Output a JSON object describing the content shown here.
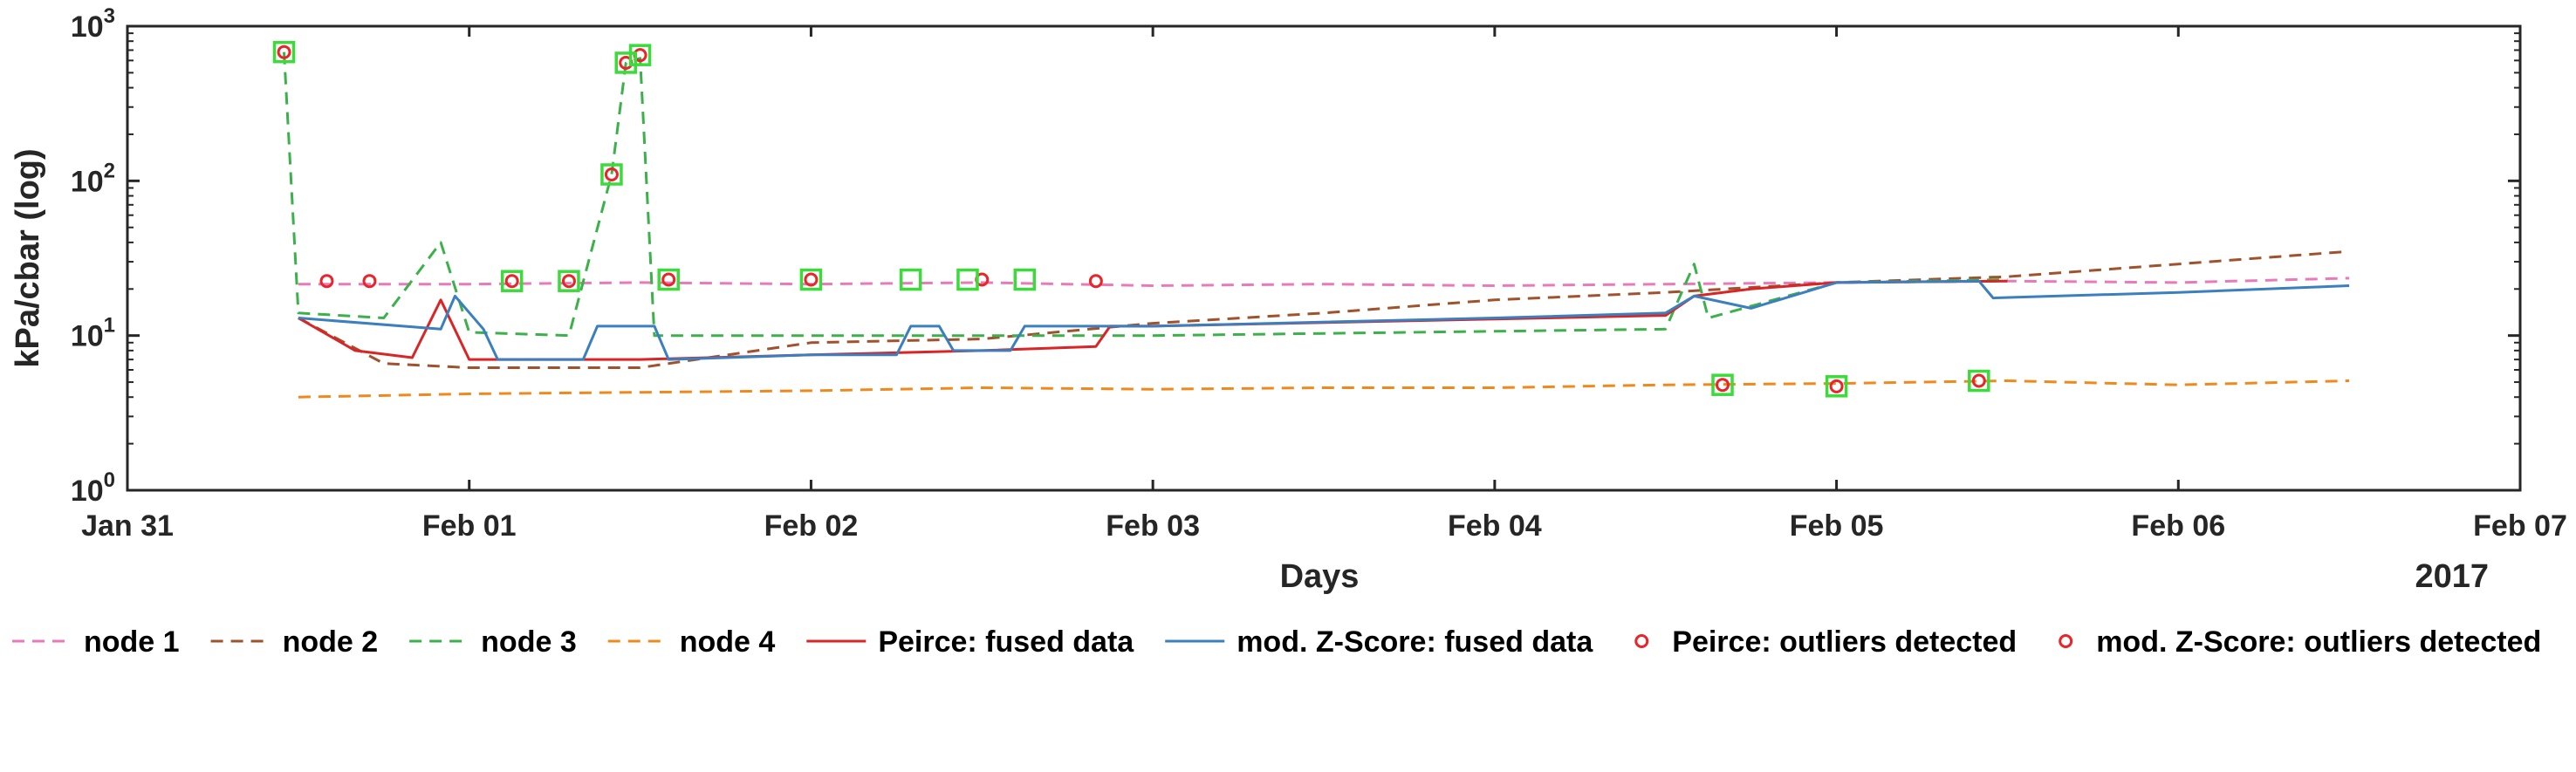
{
  "chart_data": {
    "type": "line",
    "ylabel": "kPa/cbar (log)",
    "xlabel": "Days",
    "year_label": "2017",
    "yscale": "log",
    "ylim": [
      1,
      1000
    ],
    "xlim": [
      "Jan 31",
      "Feb 07"
    ],
    "x_ticks": [
      "Jan 31",
      "Feb 01",
      "Feb 02",
      "Feb 03",
      "Feb 04",
      "Feb 05",
      "Feb 06",
      "Feb 07"
    ],
    "y_ticks": [
      {
        "base": "10",
        "exp": "0"
      },
      {
        "base": "10",
        "exp": "1"
      },
      {
        "base": "10",
        "exp": "2"
      },
      {
        "base": "10",
        "exp": "3"
      }
    ],
    "grid": false,
    "legend_position": "bottom",
    "series": [
      {
        "name": "node 1",
        "style": "dashed",
        "color": "#e87ab9",
        "points": [
          [
            "Jan 31 12:00",
            21.5
          ],
          [
            "Feb 01 00:00",
            21.5
          ],
          [
            "Feb 01 12:00",
            22
          ],
          [
            "Feb 02 00:00",
            21.5
          ],
          [
            "Feb 02 12:00",
            22
          ],
          [
            "Feb 03 00:00",
            21
          ],
          [
            "Feb 03 12:00",
            21.5
          ],
          [
            "Feb 04 00:00",
            21
          ],
          [
            "Feb 04 12:00",
            21.5
          ],
          [
            "Feb 05 00:00",
            22
          ],
          [
            "Feb 05 12:00",
            22.5
          ],
          [
            "Feb 06 00:00",
            22
          ],
          [
            "Feb 06 12:00",
            23.5
          ]
        ]
      },
      {
        "name": "node 2",
        "style": "dashed",
        "color": "#a0522d",
        "points": [
          [
            "Jan 31 12:00",
            13
          ],
          [
            "Jan 31 18:00",
            6.6
          ],
          [
            "Feb 01 00:00",
            6.2
          ],
          [
            "Feb 01 12:00",
            6.2
          ],
          [
            "Feb 02 00:00",
            9
          ],
          [
            "Feb 02 12:00",
            9.5
          ],
          [
            "Feb 03 00:00",
            12
          ],
          [
            "Feb 03 12:00",
            14
          ],
          [
            "Feb 04 00:00",
            17
          ],
          [
            "Feb 04 12:00",
            19
          ],
          [
            "Feb 05 00:00",
            22
          ],
          [
            "Feb 05 12:00",
            24
          ],
          [
            "Feb 06 00:00",
            29
          ],
          [
            "Feb 06 12:00",
            35
          ]
        ]
      },
      {
        "name": "node 3",
        "style": "dashed",
        "color": "#3cb04a",
        "points": [
          [
            "Jan 31 11:00",
            680
          ],
          [
            "Jan 31 12:00",
            14
          ],
          [
            "Jan 31 18:00",
            13
          ],
          [
            "Jan 31 22:00",
            40
          ],
          [
            "Feb 01 00:00",
            10.5
          ],
          [
            "Feb 01 07:00",
            10
          ],
          [
            "Feb 01 10:00",
            110
          ],
          [
            "Feb 01 11:00",
            580
          ],
          [
            "Feb 01 12:00",
            620
          ],
          [
            "Feb 01 13:00",
            10
          ],
          [
            "Feb 02 00:00",
            10
          ],
          [
            "Feb 03 00:00",
            10
          ],
          [
            "Feb 04 12:00",
            11
          ],
          [
            "Feb 04 14:00",
            29
          ],
          [
            "Feb 04 15:00",
            13
          ],
          [
            "Feb 05 00:00",
            22
          ],
          [
            "Feb 05 12:00",
            23
          ]
        ]
      },
      {
        "name": "node 4",
        "style": "dashed",
        "color": "#f0891c",
        "points": [
          [
            "Jan 31 12:00",
            4
          ],
          [
            "Feb 01 00:00",
            4.2
          ],
          [
            "Feb 01 12:00",
            4.3
          ],
          [
            "Feb 02 00:00",
            4.4
          ],
          [
            "Feb 02 12:00",
            4.6
          ],
          [
            "Feb 03 00:00",
            4.5
          ],
          [
            "Feb 03 12:00",
            4.6
          ],
          [
            "Feb 04 00:00",
            4.6
          ],
          [
            "Feb 04 12:00",
            4.8
          ],
          [
            "Feb 05 00:00",
            4.9
          ],
          [
            "Feb 05 12:00",
            5.1
          ],
          [
            "Feb 06 00:00",
            4.8
          ],
          [
            "Feb 06 12:00",
            5.1
          ]
        ]
      },
      {
        "name": "Peirce: fused data",
        "style": "solid",
        "color": "#d92525",
        "points": [
          [
            "Jan 31 12:00",
            13
          ],
          [
            "Jan 31 16:00",
            8
          ],
          [
            "Jan 31 20:00",
            7.2
          ],
          [
            "Jan 31 22:00",
            17
          ],
          [
            "Feb 01 00:00",
            7
          ],
          [
            "Feb 01 12:00",
            7
          ],
          [
            "Feb 02 00:00",
            7.5
          ],
          [
            "Feb 02 12:00",
            8
          ],
          [
            "Feb 02 20:00",
            8.5
          ],
          [
            "Feb 02 21:00",
            11.5
          ],
          [
            "Feb 03 00:00",
            11.5
          ],
          [
            "Feb 04 12:00",
            13.5
          ],
          [
            "Feb 04 14:00",
            18
          ],
          [
            "Feb 04 18:00",
            20
          ],
          [
            "Feb 05 00:00",
            22
          ],
          [
            "Feb 05 12:00",
            22.5
          ]
        ]
      },
      {
        "name": "mod. Z-Score: fused data",
        "style": "solid",
        "color": "#3b7fbf",
        "points": [
          [
            "Jan 31 12:00",
            13
          ],
          [
            "Jan 31 22:00",
            11
          ],
          [
            "Jan 31 23:00",
            18
          ],
          [
            "Feb 01 01:00",
            11
          ],
          [
            "Feb 01 02:00",
            7
          ],
          [
            "Feb 01 08:00",
            7
          ],
          [
            "Feb 01 09:00",
            11.5
          ],
          [
            "Feb 01 13:00",
            11.5
          ],
          [
            "Feb 01 14:00",
            7
          ],
          [
            "Feb 02 00:00",
            7.5
          ],
          [
            "Feb 02 06:00",
            7.5
          ],
          [
            "Feb 02 07:00",
            11.5
          ],
          [
            "Feb 02 09:00",
            11.5
          ],
          [
            "Feb 02 10:00",
            8
          ],
          [
            "Feb 02 14:00",
            8
          ],
          [
            "Feb 02 15:00",
            11.5
          ],
          [
            "Feb 03 00:00",
            11.5
          ],
          [
            "Feb 04 00:00",
            13
          ],
          [
            "Feb 04 12:00",
            14
          ],
          [
            "Feb 04 14:00",
            18
          ],
          [
            "Feb 04 18:00",
            15
          ],
          [
            "Feb 05 00:00",
            22
          ],
          [
            "Feb 05 10:00",
            22.5
          ],
          [
            "Feb 05 11:00",
            17.5
          ],
          [
            "Feb 06 00:00",
            19
          ],
          [
            "Feb 06 12:00",
            21
          ]
        ]
      },
      {
        "name": "Peirce: outliers detected",
        "style": "marker",
        "color": "#e8252a",
        "points": [
          [
            "Jan 31 11:00",
            680
          ],
          [
            "Jan 31 14:00",
            22.5
          ],
          [
            "Jan 31 17:00",
            22.5
          ],
          [
            "Feb 01 03:00",
            22.5
          ],
          [
            "Feb 01 07:00",
            22.5
          ],
          [
            "Feb 01 10:00",
            110
          ],
          [
            "Feb 01 11:00",
            580
          ],
          [
            "Feb 01 12:00",
            650
          ],
          [
            "Feb 01 14:00",
            23
          ],
          [
            "Feb 02 00:00",
            23
          ],
          [
            "Feb 02 12:00",
            23
          ],
          [
            "Feb 02 20:00",
            22.5
          ],
          [
            "Feb 04 16:00",
            4.8
          ],
          [
            "Feb 05 00:00",
            4.7
          ],
          [
            "Feb 05 10:00",
            5.1
          ]
        ]
      },
      {
        "name": "mod. Z-Score: outliers detected",
        "style": "marker",
        "color": "#3adb3a",
        "points": [
          [
            "Jan 31 11:00",
            680
          ],
          [
            "Feb 01 03:00",
            22.5
          ],
          [
            "Feb 01 07:00",
            22.5
          ],
          [
            "Feb 01 10:00",
            110
          ],
          [
            "Feb 01 11:00",
            580
          ],
          [
            "Feb 01 12:00",
            650
          ],
          [
            "Feb 01 14:00",
            23
          ],
          [
            "Feb 02 00:00",
            23
          ],
          [
            "Feb 02 07:00",
            23
          ],
          [
            "Feb 02 11:00",
            23
          ],
          [
            "Feb 02 15:00",
            23
          ],
          [
            "Feb 04 16:00",
            4.8
          ],
          [
            "Feb 05 00:00",
            4.7
          ],
          [
            "Feb 05 10:00",
            5.1
          ]
        ]
      }
    ]
  }
}
